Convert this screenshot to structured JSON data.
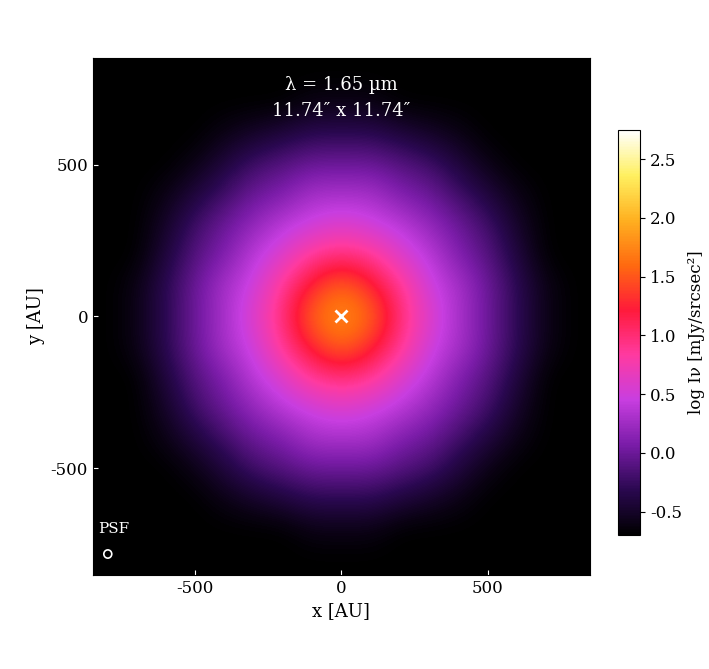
{
  "chart_data": {
    "type": "heatmap",
    "title": "λ = 1.65 µm",
    "subtitle": "11.74″ x 11.74″",
    "x_label": "x [AU]",
    "y_label": "y [AU]",
    "colorbar_label": "log Iν [mJy/srcsec²]",
    "psf_label": "PSF",
    "xlim": [
      -850,
      850
    ],
    "ylim": [
      -850,
      850
    ],
    "xticks": [
      -500,
      0,
      500
    ],
    "yticks": [
      -500,
      0,
      500
    ],
    "marker": "x",
    "star_position": [
      0,
      0
    ],
    "colorbar_range": [
      -0.7,
      2.75
    ],
    "colorbar_ticks": [
      -0.5,
      0.0,
      0.5,
      1.0,
      1.5,
      2.0,
      2.5
    ],
    "cells": [
      [
        -0.7,
        -0.7,
        -0.7,
        -0.7,
        -0.7,
        -0.7,
        -0.7,
        -0.7,
        -0.7,
        -0.7,
        -0.7,
        -0.7,
        -0.7,
        -0.7,
        -0.7,
        -0.7,
        -0.7
      ],
      [
        -0.7,
        -0.7,
        -0.7,
        -0.7,
        -0.7,
        -0.7,
        -0.7,
        -0.6,
        -0.6,
        -0.6,
        -0.7,
        -0.7,
        -0.7,
        -0.7,
        -0.7,
        -0.7,
        -0.7
      ],
      [
        -0.7,
        -0.7,
        -0.7,
        -0.7,
        -0.6,
        -0.5,
        -0.4,
        -0.3,
        -0.3,
        -0.3,
        -0.4,
        -0.5,
        -0.6,
        -0.7,
        -0.7,
        -0.7,
        -0.7
      ],
      [
        -0.7,
        -0.7,
        -0.7,
        -0.6,
        -0.4,
        -0.2,
        -0.1,
        0.0,
        0.0,
        0.0,
        -0.1,
        -0.2,
        -0.4,
        -0.6,
        -0.7,
        -0.7,
        -0.7
      ],
      [
        -0.7,
        -0.7,
        -0.6,
        -0.4,
        -0.2,
        0.0,
        0.1,
        0.3,
        0.3,
        0.3,
        0.1,
        0.0,
        -0.2,
        -0.4,
        -0.6,
        -0.7,
        -0.7
      ],
      [
        -0.7,
        -0.7,
        -0.5,
        -0.2,
        0.0,
        0.2,
        0.4,
        0.5,
        0.6,
        0.5,
        0.4,
        0.2,
        0.0,
        -0.2,
        -0.5,
        -0.7,
        -0.7
      ],
      [
        -0.7,
        -0.7,
        -0.4,
        -0.1,
        0.1,
        0.4,
        0.6,
        0.9,
        1.0,
        0.9,
        0.6,
        0.4,
        0.1,
        -0.1,
        -0.4,
        -0.7,
        -0.7
      ],
      [
        -0.7,
        -0.6,
        -0.3,
        0.0,
        0.3,
        0.5,
        0.9,
        1.3,
        1.6,
        1.3,
        0.9,
        0.5,
        0.3,
        0.0,
        -0.3,
        -0.6,
        -0.7
      ],
      [
        -0.7,
        -0.6,
        -0.3,
        0.0,
        0.3,
        0.6,
        1.0,
        1.6,
        1.8,
        1.6,
        1.0,
        0.6,
        0.3,
        0.0,
        -0.3,
        -0.6,
        -0.7
      ],
      [
        -0.7,
        -0.6,
        -0.3,
        0.0,
        0.3,
        0.5,
        0.9,
        1.3,
        1.6,
        1.3,
        0.9,
        0.5,
        0.3,
        0.0,
        -0.3,
        -0.6,
        -0.7
      ],
      [
        -0.7,
        -0.7,
        -0.4,
        -0.1,
        0.1,
        0.4,
        0.6,
        0.9,
        1.0,
        0.9,
        0.6,
        0.4,
        0.1,
        -0.1,
        -0.4,
        -0.7,
        -0.7
      ],
      [
        -0.7,
        -0.7,
        -0.5,
        -0.2,
        0.0,
        0.2,
        0.4,
        0.5,
        0.6,
        0.5,
        0.4,
        0.2,
        0.0,
        -0.2,
        -0.5,
        -0.7,
        -0.7
      ],
      [
        -0.7,
        -0.7,
        -0.6,
        -0.4,
        -0.2,
        0.0,
        0.1,
        0.3,
        0.3,
        0.3,
        0.1,
        0.0,
        -0.2,
        -0.4,
        -0.6,
        -0.7,
        -0.7
      ],
      [
        -0.7,
        -0.7,
        -0.7,
        -0.6,
        -0.4,
        -0.2,
        -0.1,
        0.0,
        0.0,
        0.0,
        -0.1,
        -0.2,
        -0.4,
        -0.6,
        -0.7,
        -0.7,
        -0.7
      ],
      [
        -0.7,
        -0.7,
        -0.7,
        -0.7,
        -0.6,
        -0.5,
        -0.4,
        -0.3,
        -0.3,
        -0.3,
        -0.4,
        -0.5,
        -0.6,
        -0.7,
        -0.7,
        -0.7,
        -0.7
      ],
      [
        -0.7,
        -0.7,
        -0.7,
        -0.7,
        -0.7,
        -0.7,
        -0.7,
        -0.6,
        -0.6,
        -0.6,
        -0.7,
        -0.7,
        -0.7,
        -0.7,
        -0.7,
        -0.7,
        -0.7
      ],
      [
        -0.7,
        -0.7,
        -0.7,
        -0.7,
        -0.7,
        -0.7,
        -0.7,
        -0.7,
        -0.7,
        -0.7,
        -0.7,
        -0.7,
        -0.7,
        -0.7,
        -0.7,
        -0.7,
        -0.7
      ]
    ]
  }
}
